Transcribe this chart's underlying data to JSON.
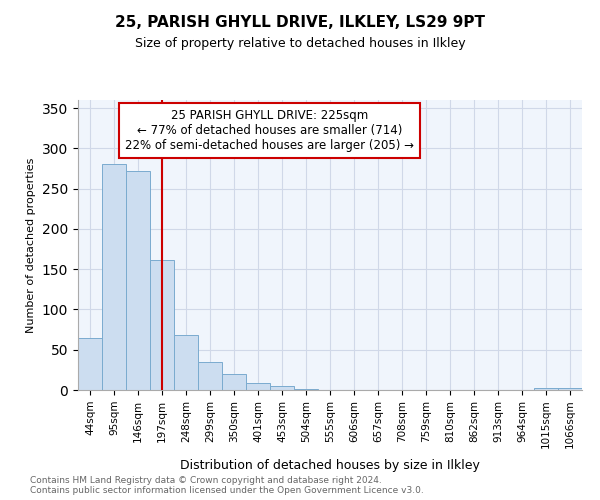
{
  "title": "25, PARISH GHYLL DRIVE, ILKLEY, LS29 9PT",
  "subtitle": "Size of property relative to detached houses in Ilkley",
  "xlabel": "Distribution of detached houses by size in Ilkley",
  "ylabel": "Number of detached properties",
  "footer": "Contains HM Land Registry data © Crown copyright and database right 2024.\nContains public sector information licensed under the Open Government Licence v3.0.",
  "categories": [
    "44sqm",
    "95sqm",
    "146sqm",
    "197sqm",
    "248sqm",
    "299sqm",
    "350sqm",
    "401sqm",
    "453sqm",
    "504sqm",
    "555sqm",
    "606sqm",
    "657sqm",
    "708sqm",
    "759sqm",
    "810sqm",
    "862sqm",
    "913sqm",
    "964sqm",
    "1015sqm",
    "1066sqm"
  ],
  "values": [
    65,
    280,
    272,
    162,
    68,
    35,
    20,
    9,
    5,
    1,
    0,
    0,
    0,
    0,
    0,
    0,
    0,
    0,
    0,
    2,
    2
  ],
  "bar_color": "#ccddf0",
  "bar_edge_color": "#7aabcf",
  "annotation_line1": "25 PARISH GHYLL DRIVE: 225sqm",
  "annotation_line2": "← 77% of detached houses are smaller (714)",
  "annotation_line3": "22% of semi-detached houses are larger (205) →",
  "vline_color": "#cc0000",
  "ylim": [
    0,
    360
  ],
  "yticks": [
    0,
    50,
    100,
    150,
    200,
    250,
    300,
    350
  ],
  "vline_position": 3.0,
  "background_color": "#ffffff",
  "plot_bg_color": "#f0f5fc",
  "grid_color": "#d0d8e8",
  "title_fontsize": 11,
  "subtitle_fontsize": 9
}
